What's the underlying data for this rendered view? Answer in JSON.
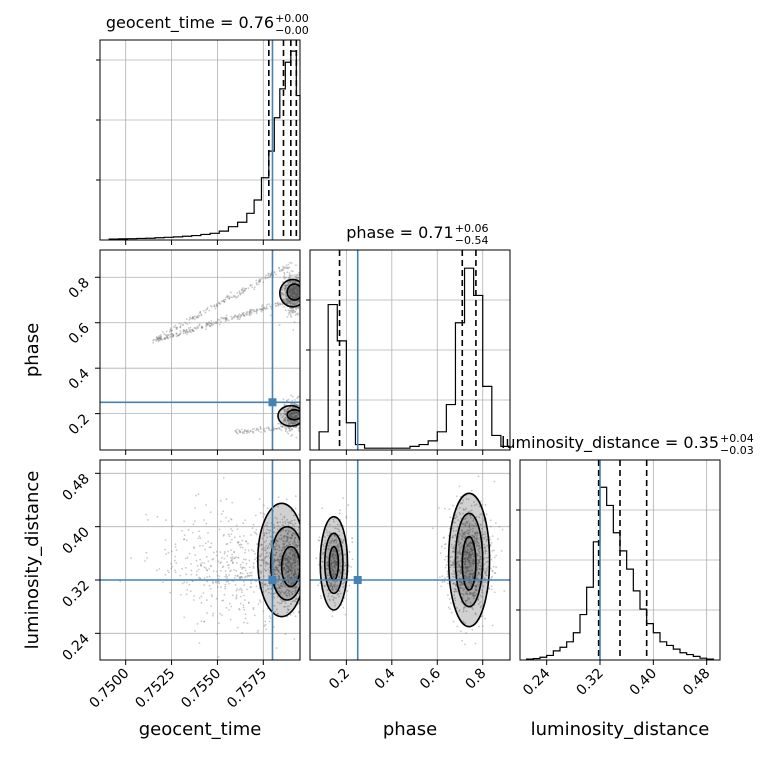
{
  "chart_data": {
    "type": "corner",
    "parameters": [
      "geocent_time",
      "phase",
      "luminosity_distance"
    ],
    "truths": {
      "geocent_time": 0.758,
      "phase": 0.25,
      "luminosity_distance": 0.32
    },
    "colors": {
      "truth": "#4682b4",
      "hist": "#000000",
      "grid": "#b0b0b0",
      "points": "#666666"
    },
    "marginals": [
      {
        "param": "geocent_time",
        "title": "geocent_time = 0.76",
        "title_plus": "+0.00",
        "title_minus": "−0.00",
        "xlim": [
          0.7486,
          0.7595
        ],
        "quantiles": [
          0.7578,
          0.7586,
          0.759,
          0.7593
        ],
        "bin_edges": [
          0.7491,
          0.7496,
          0.7501,
          0.7506,
          0.7511,
          0.7516,
          0.7521,
          0.7526,
          0.7531,
          0.7536,
          0.7541,
          0.7546,
          0.7551,
          0.7556,
          0.7561,
          0.7566,
          0.757,
          0.7574,
          0.7578,
          0.7581,
          0.7584,
          0.7587,
          0.759,
          0.7593,
          0.7595
        ],
        "counts": [
          0.4,
          0.5,
          0.6,
          0.7,
          0.8,
          1.0,
          1.2,
          1.4,
          1.7,
          2.0,
          2.5,
          3.0,
          4,
          6,
          8,
          12,
          18,
          28,
          40,
          55,
          68,
          80,
          85,
          65
        ],
        "ylim": [
          0,
          90
        ]
      },
      {
        "param": "phase",
        "title": "phase = 0.71",
        "title_plus": "+0.06",
        "title_minus": "−0.54",
        "xlim": [
          0.04,
          0.92
        ],
        "quantiles": [
          0.17,
          0.71,
          0.77
        ],
        "bin_edges": [
          0.08,
          0.12,
          0.16,
          0.2,
          0.24,
          0.28,
          0.32,
          0.36,
          0.4,
          0.44,
          0.48,
          0.52,
          0.56,
          0.6,
          0.64,
          0.68,
          0.72,
          0.76,
          0.8,
          0.84,
          0.88,
          0.92
        ],
        "counts": [
          10,
          80,
          60,
          15,
          3,
          1,
          1,
          1,
          1,
          1,
          2,
          3,
          5,
          10,
          25,
          70,
          100,
          85,
          35,
          8,
          2
        ],
        "ylim": [
          0,
          110
        ]
      },
      {
        "param": "luminosity_distance",
        "title": "luminosity_distance = 0.35",
        "title_plus": "+0.04",
        "title_minus": "−0.03",
        "xlim": [
          0.2,
          0.5
        ],
        "quantiles": [
          0.318,
          0.35,
          0.39
        ],
        "bin_edges": [
          0.21,
          0.22,
          0.23,
          0.24,
          0.25,
          0.26,
          0.27,
          0.28,
          0.29,
          0.3,
          0.31,
          0.32,
          0.33,
          0.34,
          0.35,
          0.36,
          0.37,
          0.38,
          0.39,
          0.4,
          0.41,
          0.42,
          0.43,
          0.44,
          0.45,
          0.46,
          0.47,
          0.48,
          0.49
        ],
        "counts": [
          0.5,
          0.8,
          1.5,
          2.5,
          5,
          7,
          10,
          15,
          25,
          40,
          65,
          95,
          85,
          70,
          60,
          50,
          38,
          28,
          20,
          15,
          10,
          8,
          6,
          4,
          3,
          2,
          1,
          0.5
        ],
        "ylim": [
          0,
          110
        ]
      }
    ],
    "axes": {
      "geocent_time": {
        "label": "geocent_time",
        "ticks": [
          0.75,
          0.7525,
          0.755,
          0.7575
        ],
        "tick_labels": [
          "0.7500",
          "0.7525",
          "0.7550",
          "0.7575"
        ]
      },
      "phase": {
        "label": "phase",
        "ticks": [
          0.2,
          0.4,
          0.6,
          0.8
        ],
        "tick_labels": [
          "0.2",
          "0.4",
          "0.6",
          "0.8"
        ],
        "ylim": [
          0.08,
          0.92
        ]
      },
      "luminosity_distance": {
        "label": "luminosity_distance",
        "ticks": [
          0.24,
          0.32,
          0.4,
          0.48
        ],
        "tick_labels": [
          "0.24",
          "0.32",
          "0.40",
          "0.48"
        ],
        "ylim": [
          0.2,
          0.5
        ]
      }
    },
    "grid": true,
    "scatter_seed": 7
  }
}
